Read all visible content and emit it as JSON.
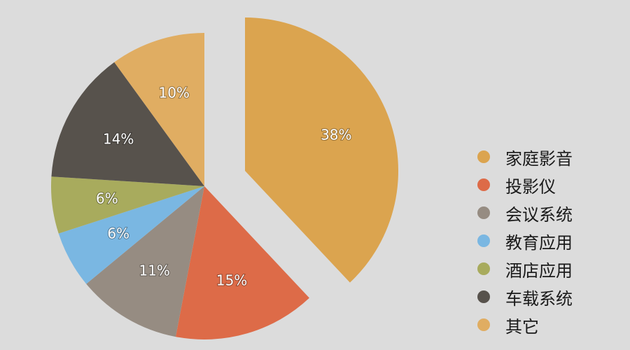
{
  "chart_data": {
    "type": "pie",
    "categories": [
      "家庭影音",
      "投影仪",
      "会议系统",
      "教育应用",
      "酒店应用",
      "车载系统",
      "其它"
    ],
    "values": [
      38,
      15,
      11,
      6,
      6,
      14,
      10
    ],
    "labels": [
      "38%",
      "15%",
      "11%",
      "6%",
      "6%",
      "14%",
      "10%"
    ],
    "colors": [
      "#dba44f",
      "#dd6b48",
      "#968c82",
      "#7ab7e2",
      "#a8ab5d",
      "#57524c",
      "#e0ad62"
    ],
    "exploded_slice": "家庭影音",
    "legend_position": "right"
  }
}
